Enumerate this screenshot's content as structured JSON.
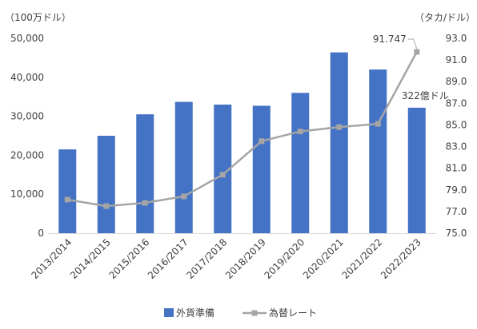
{
  "chart_data": {
    "type": "bar+line",
    "y_left_unit": "（100万ドル）",
    "y_right_unit": "（タカ/ドル）",
    "y_left_lim": [
      0,
      50000
    ],
    "y_left_ticks": [
      "0",
      "10,000",
      "20,000",
      "30,000",
      "40,000",
      "50,000"
    ],
    "y_right_lim": [
      75,
      93
    ],
    "y_right_ticks": [
      "75.0",
      "77.0",
      "79.0",
      "81.0",
      "83.0",
      "85.0",
      "87.0",
      "89.0",
      "91.0",
      "93.0"
    ],
    "categories": [
      "2013/2014",
      "2014/2015",
      "2015/2016",
      "2016/2017",
      "2017/2018",
      "2018/2019",
      "2019/2020",
      "2020/2021",
      "2021/2022",
      "2022/2023"
    ],
    "series": [
      {
        "name": "外貨準備",
        "type": "bar",
        "axis": "left",
        "color": "#4472C4",
        "values": [
          21500,
          25000,
          30500,
          33700,
          33000,
          32700,
          36000,
          46400,
          42000,
          32200
        ]
      },
      {
        "name": "為替レート",
        "type": "line",
        "axis": "right",
        "color": "#A5A5A5",
        "values": [
          78.1,
          77.5,
          77.8,
          78.4,
          80.4,
          83.5,
          84.4,
          84.8,
          85.1,
          91.747
        ]
      }
    ],
    "annotations": [
      {
        "text": "91.747"
      },
      {
        "text": "322億ドル"
      }
    ],
    "grid": false,
    "legend": "bottom"
  }
}
